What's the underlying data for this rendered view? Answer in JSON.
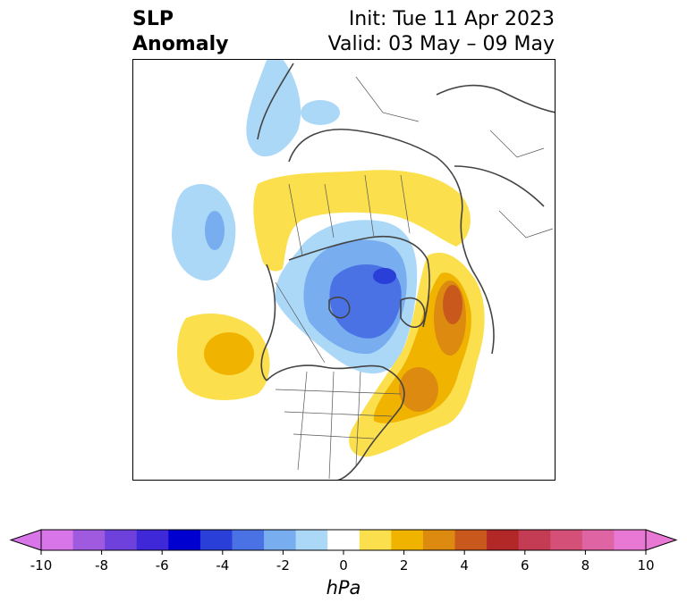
{
  "title": {
    "left_line1": "SLP",
    "left_line2": "Anomaly",
    "init": "Init: Tue 11 Apr 2023",
    "valid": "Valid: 03 May – 09 May"
  },
  "colorbar": {
    "unit": "hPa",
    "ticks": [
      "-10",
      "-8",
      "-6",
      "-4",
      "-2",
      "0",
      "2",
      "4",
      "6",
      "8",
      "10"
    ],
    "bins": [
      "#d875e8",
      "#a05ae0",
      "#6e40dc",
      "#3e28d8",
      "#0000d0",
      "#2a3ed8",
      "#4a72e4",
      "#78aef0",
      "#acd8f8",
      "#ffffff",
      "#fbdf4c",
      "#f0b400",
      "#dc8a10",
      "#c8581c",
      "#b22828",
      "#c43c54",
      "#d45078",
      "#de64a4",
      "#e878d4"
    ],
    "extend_low_color": "#d875e8",
    "extend_high_color": "#e878d4"
  }
}
